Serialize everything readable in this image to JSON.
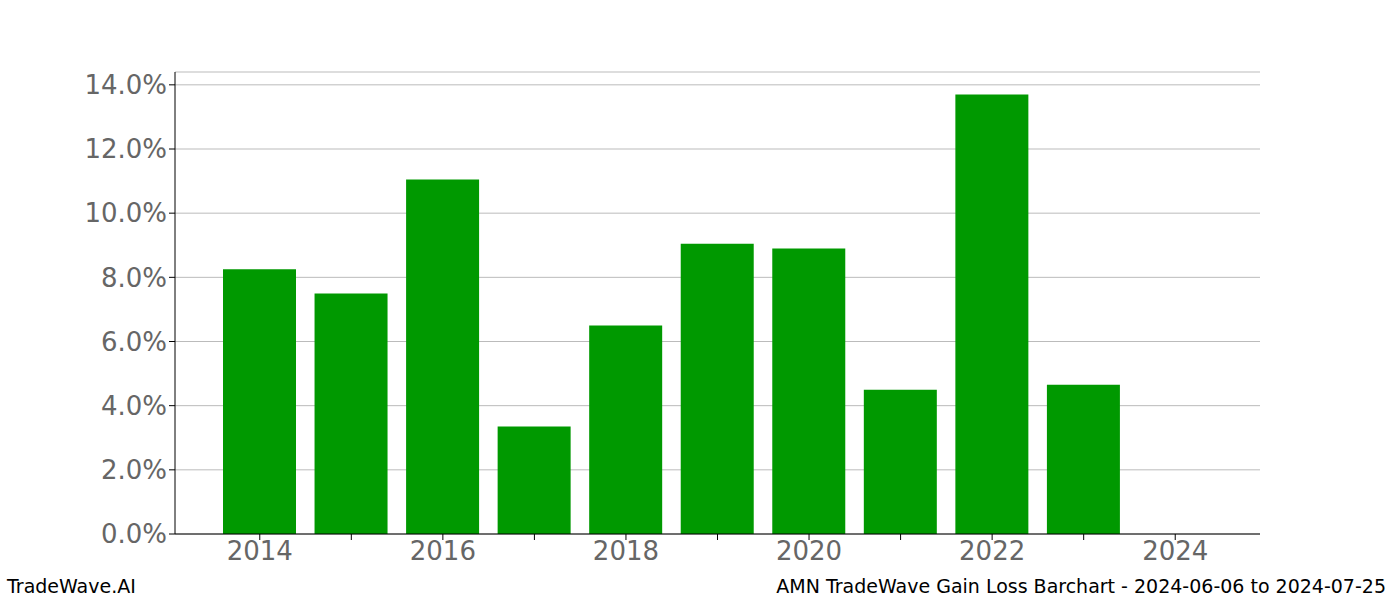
{
  "chart_data": {
    "type": "bar",
    "title": "AMN TradeWave Gain Loss Barchart - 2024-06-06 to 2024-07-25",
    "source": "TradeWave.AI",
    "categories": [
      "2014",
      null,
      "2016",
      null,
      "2018",
      null,
      "2020",
      null,
      "2022",
      null,
      "2024"
    ],
    "values": [
      8.25,
      7.5,
      11.05,
      3.35,
      6.5,
      9.05,
      8.9,
      4.5,
      13.7,
      4.65,
      null
    ],
    "color": "#009900",
    "ylim": [
      0,
      14.4
    ],
    "yticks": [
      {
        "value": 0,
        "label": "0.0%"
      },
      {
        "value": 2,
        "label": "2.0%"
      },
      {
        "value": 4,
        "label": "4.0%"
      },
      {
        "value": 6,
        "label": "6.0%"
      },
      {
        "value": 8,
        "label": "8.0%"
      },
      {
        "value": 10,
        "label": "10.0%"
      },
      {
        "value": 12,
        "label": "12.0%"
      },
      {
        "value": 14,
        "label": "14.0%"
      }
    ],
    "grid": true
  }
}
